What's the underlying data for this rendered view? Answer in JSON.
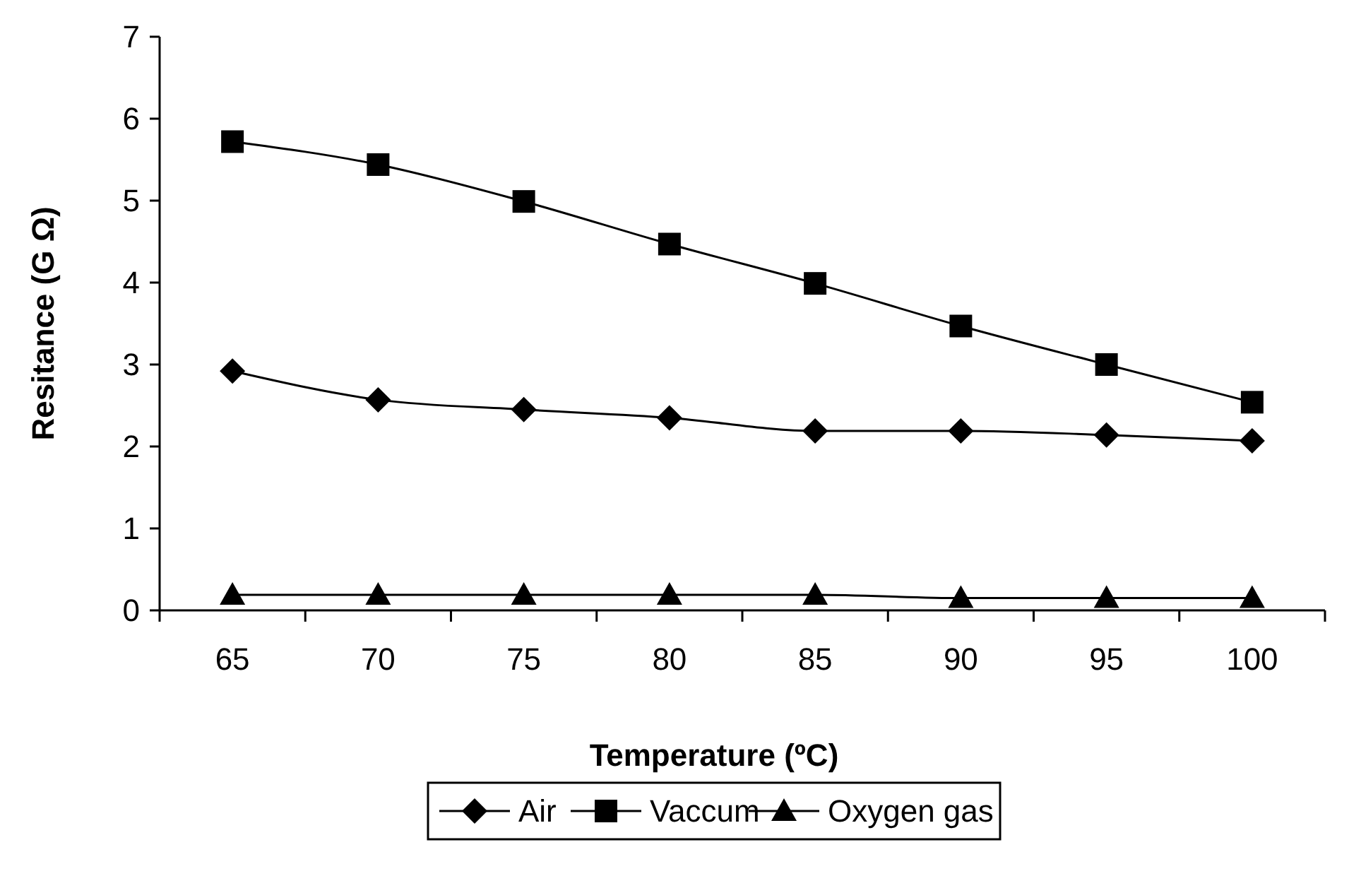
{
  "chart_data": {
    "type": "line",
    "xlabel": "Temperature (ºC)",
    "ylabel": "Resitance (G Ω)",
    "categories": [
      "65",
      "70",
      "75",
      "80",
      "85",
      "90",
      "95",
      "100"
    ],
    "series": [
      {
        "name": "Air",
        "color": "#000000",
        "marker": "diamond",
        "values": [
          2.92,
          2.57,
          2.45,
          2.35,
          2.19,
          2.19,
          2.14,
          2.07
        ]
      },
      {
        "name": "Vaccum",
        "color": "#000000",
        "marker": "square",
        "values": [
          5.72,
          5.44,
          4.99,
          4.47,
          3.99,
          3.47,
          3.0,
          2.54
        ]
      },
      {
        "name": "Oxygen gas",
        "color": "#000000",
        "marker": "triangle",
        "values": [
          0.19,
          0.19,
          0.19,
          0.19,
          0.19,
          0.15,
          0.15,
          0.15
        ]
      }
    ],
    "ylim": [
      0,
      7
    ],
    "yticks": [
      0,
      1,
      2,
      3,
      4,
      5,
      6,
      7
    ],
    "grid": false,
    "legend": "bottom",
    "line_style": "solid"
  }
}
